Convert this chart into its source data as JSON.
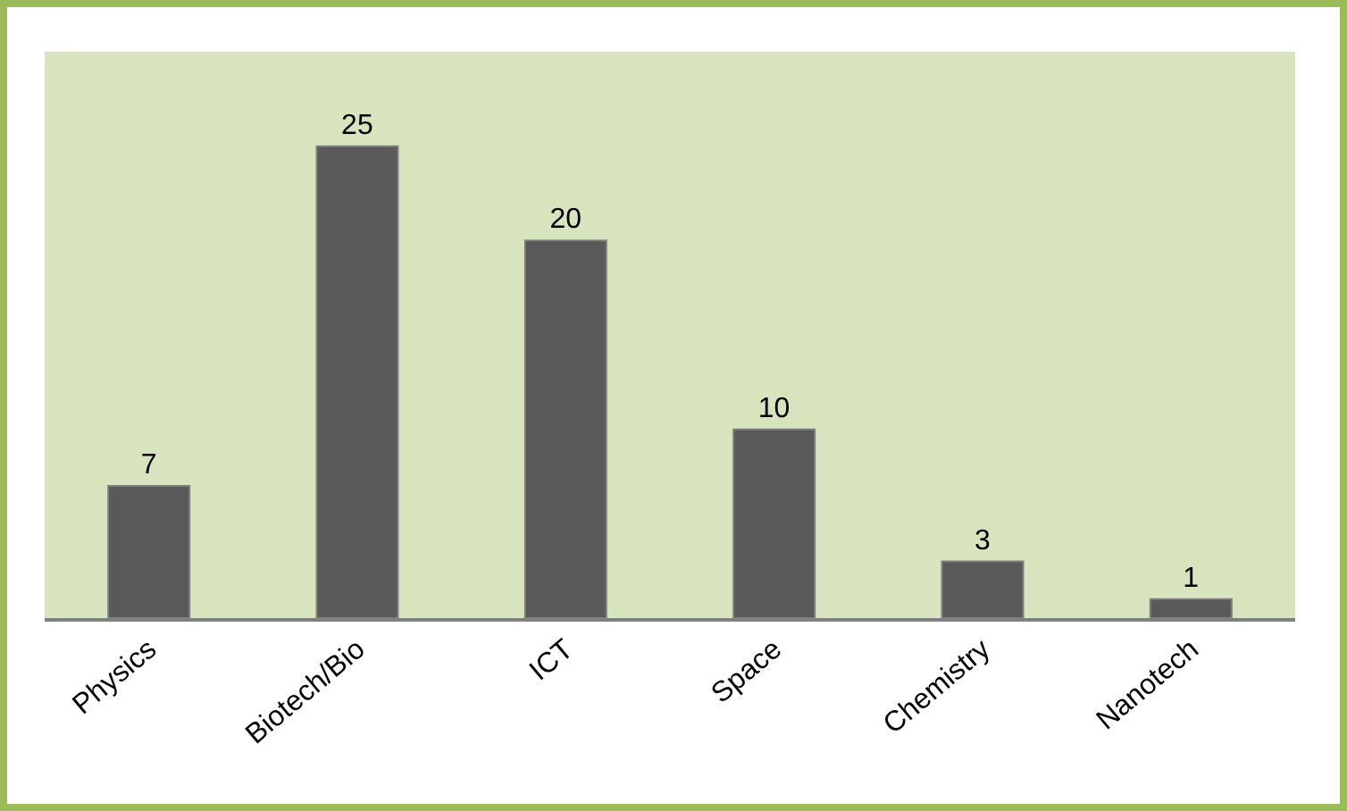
{
  "chart_data": {
    "type": "bar",
    "categories": [
      "Physics",
      "Biotech/Bio",
      "ICT",
      "Space",
      "Chemistry",
      "Nanotech"
    ],
    "values": [
      7,
      25,
      20,
      10,
      3,
      1
    ],
    "color": "#595959",
    "ylim": [
      0,
      30
    ],
    "data_labels": true,
    "tick_labels": "x"
  }
}
